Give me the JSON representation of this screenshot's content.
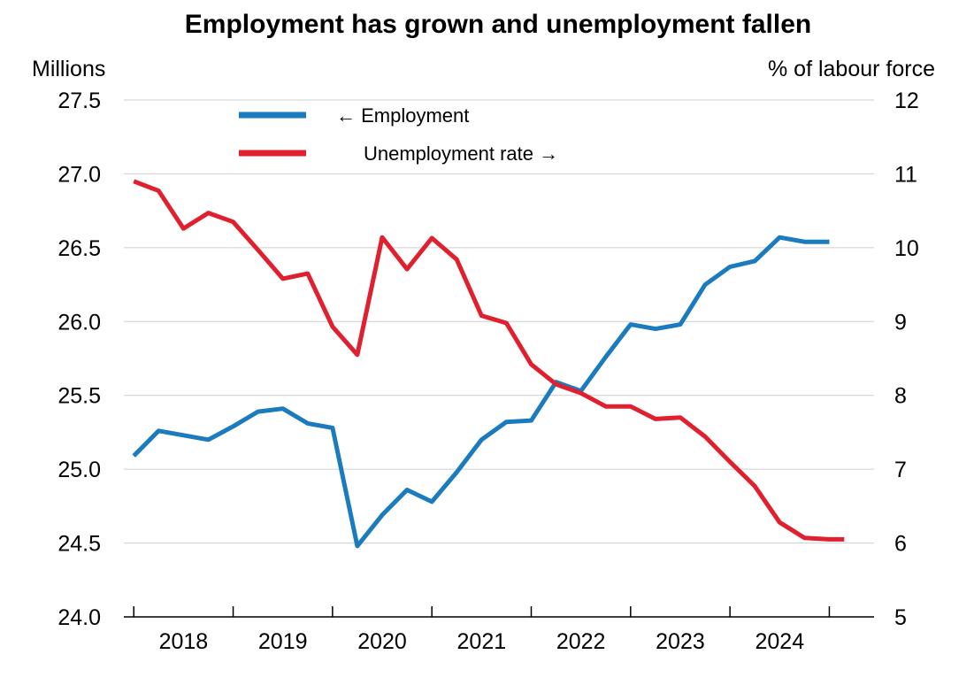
{
  "chart_data": {
    "type": "line",
    "title": "Employment has grown and unemployment fallen",
    "y_left_label": "Millions",
    "y_right_label": "% of labour force",
    "y_left_range": [
      24.0,
      27.5
    ],
    "y_right_range": [
      5,
      12
    ],
    "y_left_ticks": [
      "24.0",
      "24.5",
      "25.0",
      "25.5",
      "26.0",
      "26.5",
      "27.0",
      "27.5"
    ],
    "y_right_ticks": [
      "5",
      "6",
      "7",
      "8",
      "9",
      "10",
      "11",
      "12"
    ],
    "x_range": [
      2017.4,
      2024.95
    ],
    "x_year_boundaries": [
      2017.5,
      2018.5,
      2019.5,
      2020.5,
      2021.5,
      2022.5,
      2023.5,
      2024.5
    ],
    "x_year_labels": [
      {
        "label": "2018",
        "x": 2018.0
      },
      {
        "label": "2019",
        "x": 2019.0
      },
      {
        "label": "2020",
        "x": 2020.0
      },
      {
        "label": "2021",
        "x": 2021.0
      },
      {
        "label": "2022",
        "x": 2022.0
      },
      {
        "label": "2023",
        "x": 2023.0
      },
      {
        "label": "2024",
        "x": 2024.0
      }
    ],
    "grid": true,
    "legend_position": "top-left",
    "series": [
      {
        "name": "← Employment",
        "axis": "left",
        "color": "#1a7bbf",
        "x": [
          2017.5,
          2017.75,
          2018.0,
          2018.25,
          2018.5,
          2018.75,
          2019.0,
          2019.25,
          2019.5,
          2019.75,
          2020.0,
          2020.25,
          2020.5,
          2020.75,
          2021.0,
          2021.25,
          2021.5,
          2021.75,
          2022.0,
          2022.25,
          2022.5,
          2022.75,
          2023.0,
          2023.25,
          2023.5,
          2023.75,
          2024.0,
          2024.25,
          2024.5
        ],
        "values": [
          25.09,
          25.26,
          25.23,
          25.2,
          25.29,
          25.39,
          25.41,
          25.31,
          25.28,
          24.48,
          24.69,
          24.86,
          24.78,
          24.98,
          25.2,
          25.32,
          25.33,
          25.59,
          25.53,
          25.76,
          25.98,
          25.95,
          25.98,
          26.25,
          26.37,
          26.41,
          26.57,
          26.54,
          26.54
        ]
      },
      {
        "name": "Unemployment rate →",
        "axis": "right",
        "color": "#e0202e",
        "x": [
          2017.5,
          2017.75,
          2018.0,
          2018.25,
          2018.5,
          2018.75,
          2019.0,
          2019.25,
          2019.5,
          2019.75,
          2020.0,
          2020.25,
          2020.5,
          2020.75,
          2021.0,
          2021.25,
          2021.5,
          2021.75,
          2022.0,
          2022.25,
          2022.5,
          2022.75,
          2023.0,
          2023.25,
          2023.5,
          2023.75,
          2024.0,
          2024.25,
          2024.5,
          2024.65
        ],
        "values": [
          10.9,
          10.77,
          10.26,
          10.47,
          10.35,
          9.97,
          9.58,
          9.65,
          8.93,
          8.55,
          10.14,
          9.71,
          10.13,
          9.84,
          9.08,
          8.98,
          8.42,
          8.15,
          8.03,
          7.85,
          7.85,
          7.68,
          7.7,
          7.44,
          7.1,
          6.77,
          6.28,
          6.07,
          6.05,
          6.05
        ]
      }
    ]
  },
  "colors": {
    "employment": "#1a7bbf",
    "unemployment": "#e0202e",
    "grid": "#cfcfcf",
    "axis": "#000000"
  }
}
